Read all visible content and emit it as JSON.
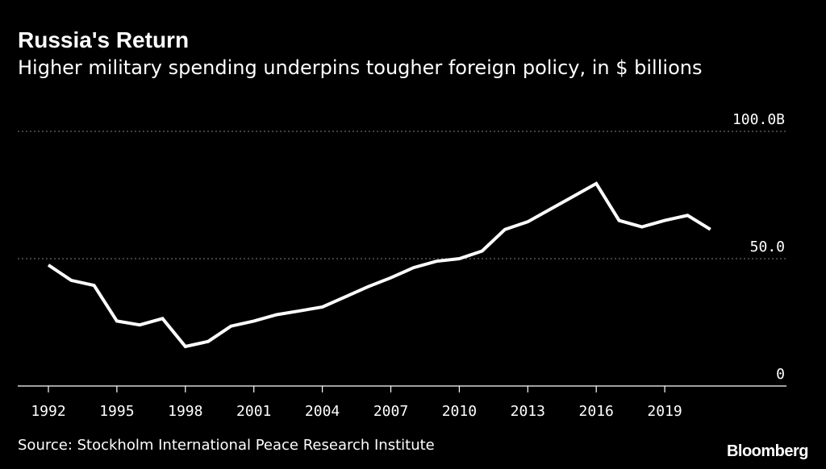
{
  "header": {
    "title": "Russia's Return",
    "subtitle": "Higher military spending underpins tougher foreign policy, in $ billions"
  },
  "footer": {
    "source": "Source: Stockholm International Peace Research Institute",
    "brand": "Bloomberg"
  },
  "colors": {
    "background": "#000000",
    "line": "#ffffff",
    "gridline": "#7f7f7f",
    "text": "#ffffff"
  },
  "chart_data": {
    "type": "line",
    "title": "Russia's Return",
    "subtitle": "Higher military spending underpins tougher foreign policy, in $ billions",
    "xlabel": "",
    "ylabel": "",
    "ylim": [
      0,
      100
    ],
    "xlim": [
      1992,
      2021
    ],
    "x_ticks": [
      "1992",
      "1995",
      "1998",
      "2001",
      "2004",
      "2007",
      "2010",
      "2013",
      "2016",
      "2019"
    ],
    "y_ticks": [
      {
        "value": 0,
        "label": "0"
      },
      {
        "value": 50,
        "label": "50.0"
      },
      {
        "value": 100,
        "label": "100.0B"
      }
    ],
    "grid": true,
    "series": [
      {
        "x": [
          1992,
          1993,
          1994,
          1995,
          1996,
          1997,
          1998,
          1999,
          2000,
          2001,
          2002,
          2003,
          2004,
          2005,
          2006,
          2007,
          2008,
          2009,
          2010,
          2011,
          2012,
          2013,
          2014,
          2015,
          2016,
          2017,
          2018,
          2019,
          2020,
          2021
        ],
        "values": [
          47.5,
          41.5,
          39.5,
          25.5,
          24,
          26.5,
          15.5,
          17.5,
          23.5,
          25.5,
          28,
          29.5,
          31,
          35,
          39,
          42.5,
          46.5,
          49,
          50,
          53,
          61.5,
          64.5,
          69.5,
          74.5,
          79.5,
          65,
          62.5,
          65,
          67,
          61.5
        ]
      }
    ]
  }
}
